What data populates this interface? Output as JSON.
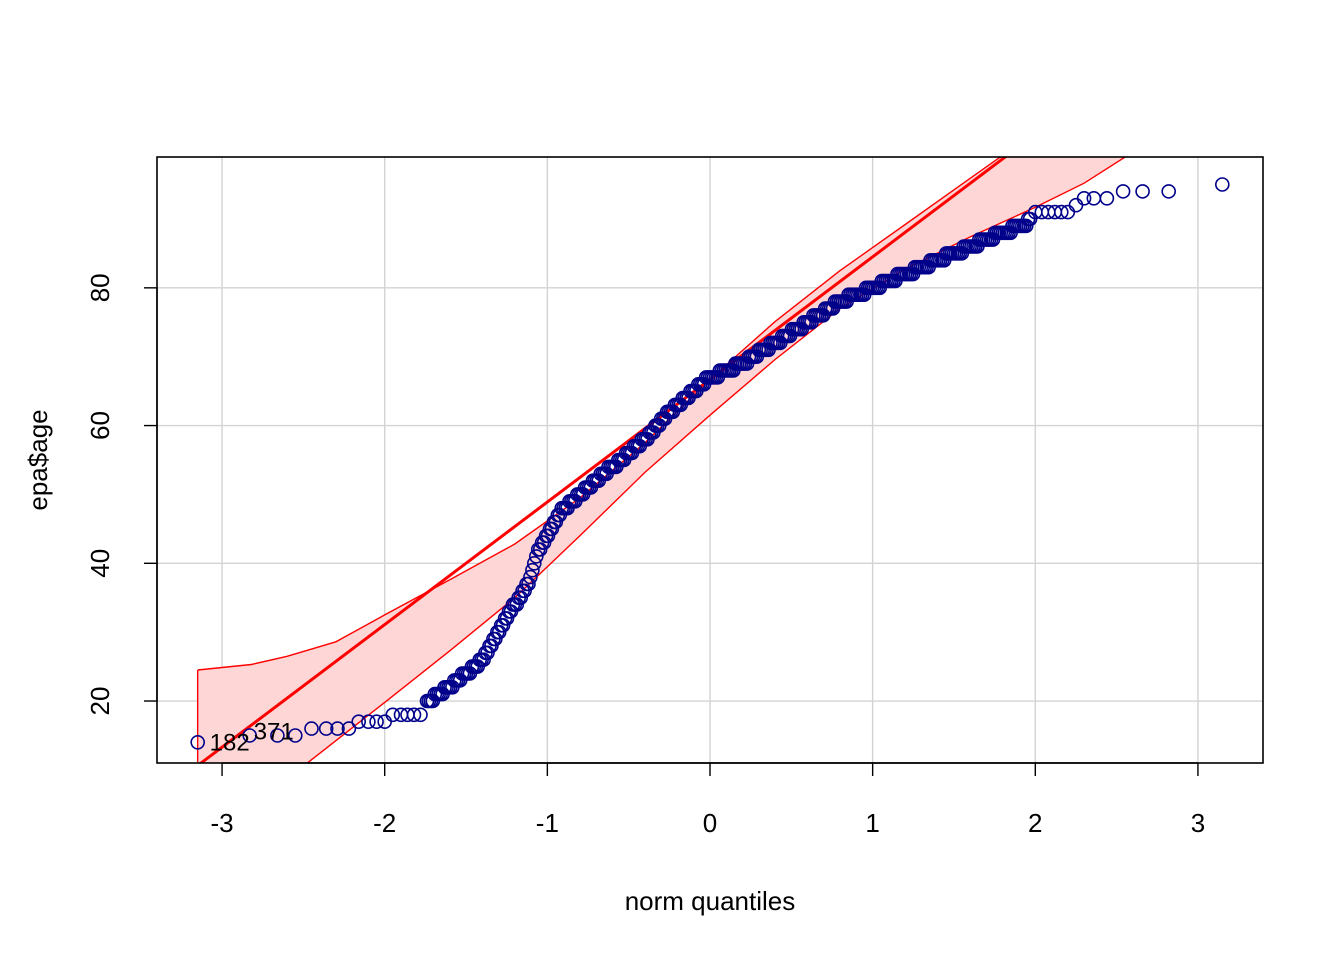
{
  "chart_data": {
    "type": "scatter",
    "title": "",
    "xlabel": "norm quantiles",
    "ylabel": "epa$age",
    "xlim": [
      -3.4,
      3.4
    ],
    "ylim": [
      11,
      99
    ],
    "xticks": [
      "-3",
      "-2",
      "-1",
      "0",
      "1",
      "2",
      "3"
    ],
    "yticks": [
      "20",
      "40",
      "60",
      "80"
    ],
    "grid": true,
    "colors": {
      "points": "#00008B",
      "line": "#FF0000",
      "band_fill": "#FFD6D6",
      "grid": "#D3D3D3"
    },
    "reference_line": {
      "intercept": 66.7,
      "slope": 17.8
    },
    "envelope_upper": [
      [
        -3.15,
        24.5
      ],
      [
        -2.82,
        25.3
      ],
      [
        -2.6,
        26.5
      ],
      [
        -2.3,
        28.6
      ],
      [
        -2.0,
        32.5
      ],
      [
        -1.6,
        37.6
      ],
      [
        -1.2,
        42.8
      ],
      [
        -0.8,
        49.5
      ],
      [
        -0.4,
        57.5
      ],
      [
        0.0,
        66.7
      ],
      [
        0.4,
        75.1
      ],
      [
        0.8,
        82.5
      ],
      [
        1.2,
        89.2
      ],
      [
        1.6,
        95.9
      ],
      [
        2.0,
        102.6
      ],
      [
        2.3,
        107.8
      ],
      [
        3.15,
        122.0
      ]
    ],
    "envelope_lower": [
      [
        -3.15,
        -1.0
      ],
      [
        -2.8,
        5.0
      ],
      [
        -2.4,
        12.4
      ],
      [
        -2.0,
        19.8
      ],
      [
        -1.6,
        27.3
      ],
      [
        -1.2,
        35.0
      ],
      [
        -0.8,
        44.0
      ],
      [
        -0.4,
        53.2
      ],
      [
        0.0,
        61.5
      ],
      [
        0.4,
        69.6
      ],
      [
        0.8,
        77.0
      ],
      [
        1.2,
        82.7
      ],
      [
        1.6,
        87.4
      ],
      [
        2.0,
        91.7
      ],
      [
        2.3,
        95.2
      ],
      [
        3.15,
        108.0
      ]
    ],
    "quantile_curve": [
      [
        -3.15,
        14
      ],
      [
        -2.82,
        15
      ],
      [
        -2.6,
        15
      ],
      [
        -2.2,
        16
      ],
      [
        -2.0,
        17
      ],
      [
        -1.8,
        19
      ],
      [
        -1.6,
        22
      ],
      [
        -1.4,
        26
      ],
      [
        -1.3,
        30
      ],
      [
        -1.2,
        34
      ],
      [
        -1.1,
        38
      ],
      [
        -1.05,
        42
      ],
      [
        -0.98,
        45
      ],
      [
        -0.9,
        48
      ],
      [
        -0.8,
        50
      ],
      [
        -0.6,
        54
      ],
      [
        -0.4,
        58
      ],
      [
        -0.25,
        62
      ],
      [
        -0.1,
        65
      ],
      [
        0.0,
        67
      ],
      [
        0.2,
        69
      ],
      [
        0.4,
        72
      ],
      [
        0.6,
        75
      ],
      [
        0.8,
        78
      ],
      [
        1.0,
        80
      ],
      [
        1.2,
        82
      ],
      [
        1.4,
        84
      ],
      [
        1.6,
        86
      ],
      [
        1.8,
        88
      ],
      [
        2.0,
        90
      ],
      [
        2.2,
        91
      ]
    ],
    "discrete_points": [
      [
        -3.15,
        14
      ],
      [
        -2.83,
        15
      ],
      [
        -2.66,
        15
      ],
      [
        -2.55,
        15
      ],
      [
        -2.45,
        16
      ],
      [
        -2.36,
        16
      ],
      [
        -2.29,
        16
      ],
      [
        -2.22,
        16
      ],
      [
        -2.16,
        17
      ],
      [
        -2.1,
        17
      ],
      [
        -2.05,
        17
      ],
      [
        -2.0,
        17
      ],
      [
        -1.95,
        18
      ],
      [
        -1.9,
        18
      ],
      [
        -1.86,
        18
      ],
      [
        -1.82,
        18
      ],
      [
        -1.78,
        18
      ],
      [
        2.0,
        91
      ],
      [
        2.04,
        91
      ],
      [
        2.08,
        91
      ],
      [
        2.12,
        91
      ],
      [
        2.16,
        91
      ],
      [
        2.2,
        91
      ],
      [
        2.25,
        92
      ],
      [
        2.3,
        93
      ],
      [
        2.36,
        93
      ],
      [
        2.44,
        93
      ],
      [
        2.54,
        94
      ],
      [
        2.66,
        94
      ],
      [
        2.82,
        94
      ],
      [
        3.15,
        95
      ]
    ],
    "annotations": [
      "182",
      "371"
    ]
  }
}
